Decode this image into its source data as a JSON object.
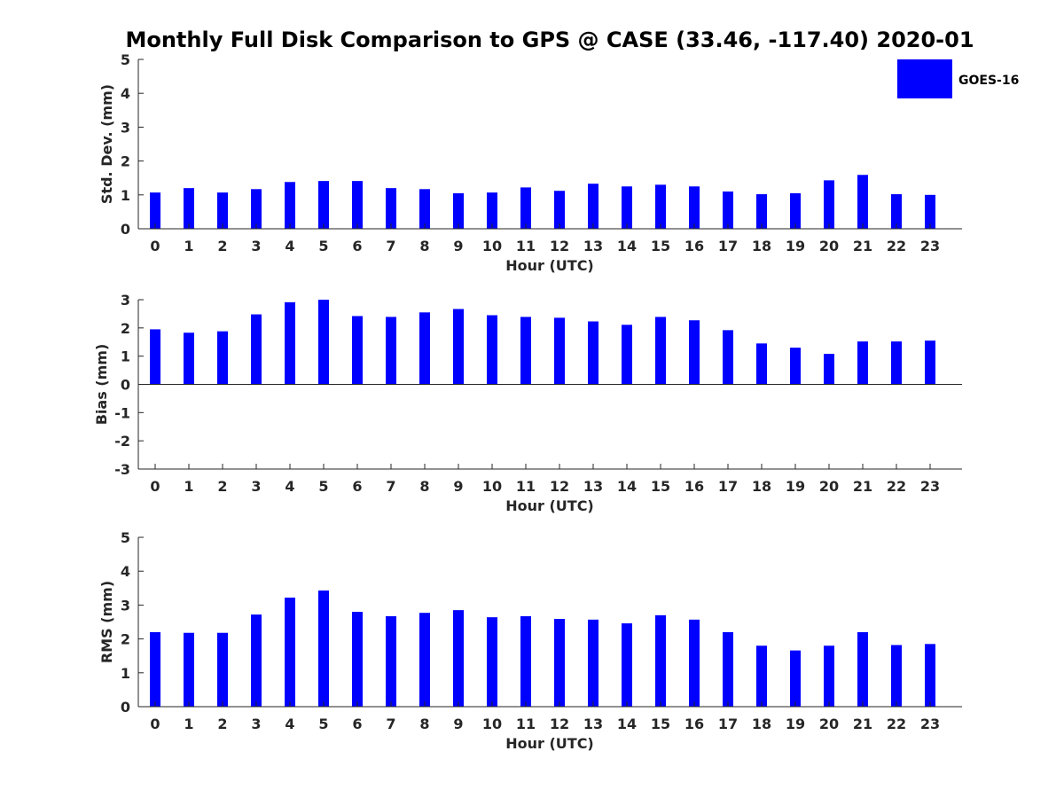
{
  "chart_data": {
    "type": "bar",
    "title": "Monthly Full Disk Comparison to GPS @ CASE (33.46, -117.40) 2020-01",
    "legend": {
      "entries": [
        "GOES-16"
      ],
      "placement": "top-right"
    },
    "bar_color": "#0000ff",
    "categories": [
      "0",
      "1",
      "2",
      "3",
      "4",
      "5",
      "6",
      "7",
      "8",
      "9",
      "10",
      "11",
      "12",
      "13",
      "14",
      "15",
      "16",
      "17",
      "18",
      "19",
      "20",
      "21",
      "22",
      "23"
    ],
    "panels": [
      {
        "id": "std",
        "ylabel": "Std. Dev. (mm)",
        "xlabel": "Hour (UTC)",
        "ylim": [
          0,
          5
        ],
        "yticks": [
          "0",
          "1",
          "2",
          "3",
          "4",
          "5"
        ],
        "series": [
          {
            "name": "GOES-16",
            "values": [
              1.07,
              1.2,
              1.07,
              1.17,
              1.38,
              1.41,
              1.41,
              1.2,
              1.17,
              1.05,
              1.07,
              1.22,
              1.12,
              1.33,
              1.25,
              1.3,
              1.25,
              1.1,
              1.02,
              1.05,
              1.43,
              1.59,
              1.02,
              1.0
            ]
          }
        ]
      },
      {
        "id": "bias",
        "ylabel": "Bias (mm)",
        "xlabel": "Hour (UTC)",
        "ylim": [
          -3,
          3
        ],
        "yticks": [
          "-3",
          "-2",
          "-1",
          "0",
          "1",
          "2",
          "3"
        ],
        "series": [
          {
            "name": "GOES-16",
            "values": [
              1.95,
              1.83,
              1.88,
              2.48,
              2.91,
              3.0,
              2.42,
              2.39,
              2.55,
              2.67,
              2.45,
              2.39,
              2.36,
              2.23,
              2.11,
              2.39,
              2.27,
              1.92,
              1.45,
              1.3,
              1.08,
              1.52,
              1.52,
              1.55
            ]
          }
        ]
      },
      {
        "id": "rms",
        "ylabel": "RMS (mm)",
        "xlabel": "Hour (UTC)",
        "ylim": [
          0,
          5
        ],
        "yticks": [
          "0",
          "1",
          "2",
          "3",
          "4",
          "5"
        ],
        "series": [
          {
            "name": "GOES-16",
            "values": [
              2.2,
              2.18,
              2.18,
              2.72,
              3.22,
              3.43,
              2.8,
              2.67,
              2.77,
              2.85,
              2.64,
              2.67,
              2.59,
              2.57,
              2.46,
              2.7,
              2.57,
              2.2,
              1.8,
              1.66,
              1.8,
              2.2,
              1.82,
              1.85
            ]
          }
        ]
      }
    ]
  }
}
